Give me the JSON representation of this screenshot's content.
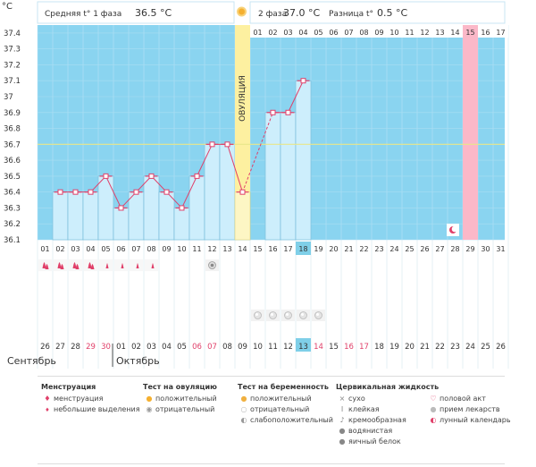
{
  "header": {
    "phase1_label": "Средняя t° 1 фаза",
    "phase1_value": "36.5 °C",
    "phase2_label": "2 фаза",
    "phase2_value": "37.0 °C",
    "diff_label": "Разница t°",
    "diff_value": "0.5 °C"
  },
  "axis_unit": "°C",
  "ovulation_label": "ОВУЛЯЦИЯ",
  "months": {
    "prev": "Сентябрь",
    "next": "Октябрь"
  },
  "colors": {
    "sky": "#8ad4f0",
    "bar": "#cdeefc",
    "bar_line": "#6fb7d8",
    "line": "#e0406a",
    "ovulation": "#fdf0a0",
    "period_col": "#fbb8c8",
    "today": "#7fcfe8",
    "cover_line": "#e8e68a"
  },
  "chart_data": {
    "type": "line",
    "title": "Базальная температура",
    "ylabel": "°C",
    "ylim": [
      36.1,
      37.45
    ],
    "yticks": [
      "37.4",
      "37.3",
      "37.2",
      "37.1",
      "37",
      "36.9",
      "36.8",
      "36.7",
      "36.6",
      "36.5",
      "36.4",
      "36.3",
      "36.2",
      "36.1"
    ],
    "cycle_days": [
      "01",
      "02",
      "03",
      "04",
      "05",
      "06",
      "07",
      "08",
      "09",
      "10",
      "11",
      "12",
      "13",
      "14",
      "15",
      "16",
      "17",
      "18",
      "19",
      "20",
      "21",
      "22",
      "23",
      "24",
      "25",
      "26",
      "27",
      "28",
      "29",
      "30",
      "31"
    ],
    "dpo_days": [
      "01",
      "02",
      "03",
      "04",
      "05",
      "06",
      "07",
      "08",
      "09",
      "10",
      "11",
      "12",
      "13",
      "14",
      "15",
      "16",
      "17"
    ],
    "dates": [
      "26",
      "27",
      "28",
      "29",
      "30",
      "01",
      "02",
      "03",
      "04",
      "05",
      "06",
      "07",
      "08",
      "09",
      "10",
      "11",
      "12",
      "13",
      "14",
      "15",
      "16",
      "17",
      "18",
      "19",
      "20",
      "21",
      "22",
      "23",
      "24",
      "25",
      "26"
    ],
    "temperatures": [
      null,
      36.4,
      36.4,
      36.4,
      36.5,
      36.3,
      36.4,
      36.5,
      36.4,
      36.3,
      36.5,
      36.7,
      36.7,
      36.4,
      null,
      36.9,
      36.9,
      37.1
    ],
    "cover_line": 36.7,
    "ovulation_day": 14,
    "today_day": 18,
    "period_day": 29,
    "period_dpo": "15"
  },
  "legend": {
    "menstruation": {
      "title": "Менструация",
      "items": [
        "менструация",
        "небольшие выделения"
      ]
    },
    "ovulation_test": {
      "title": "Тест на овуляцию",
      "items": [
        "положительный",
        "отрицательный"
      ]
    },
    "pregnancy_test": {
      "title": "Тест на беременность",
      "items": [
        "положительный",
        "отрицательный",
        "слабоположительный"
      ]
    },
    "cervical": {
      "title": "Цервикальная жидкость",
      "items": [
        "сухо",
        "клейкая",
        "кремообразная",
        "водянистая",
        "яичный белок"
      ]
    },
    "other": {
      "items": [
        "половой акт",
        "прием лекарств",
        "лунный календарь"
      ]
    }
  }
}
